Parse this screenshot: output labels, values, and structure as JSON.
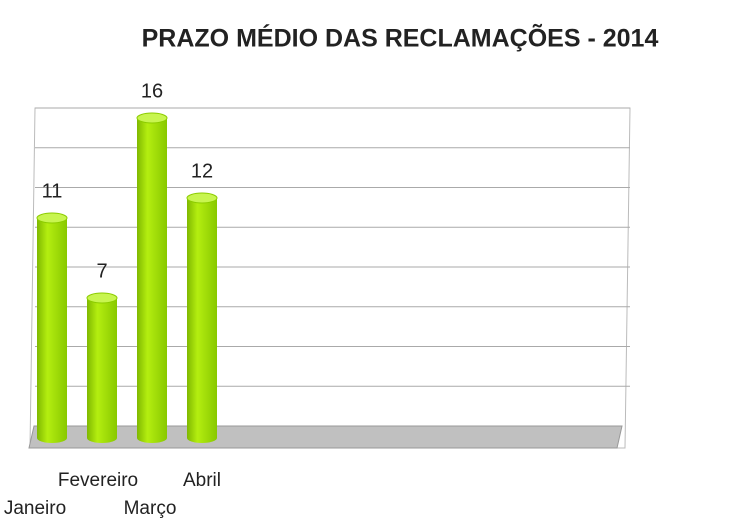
{
  "chart_data": {
    "type": "bar",
    "title": "PRAZO MÉDIO DAS RECLAMAÇÕES - 2014",
    "categories": [
      "Janeiro",
      "Fevereiro",
      "Março",
      "Abril"
    ],
    "values": [
      11,
      7,
      16,
      12
    ],
    "color": "#99dd00",
    "ylim": [
      0,
      16
    ],
    "yticks": [
      0,
      2,
      4,
      6,
      8,
      10,
      12,
      14,
      16
    ],
    "grid": true
  }
}
